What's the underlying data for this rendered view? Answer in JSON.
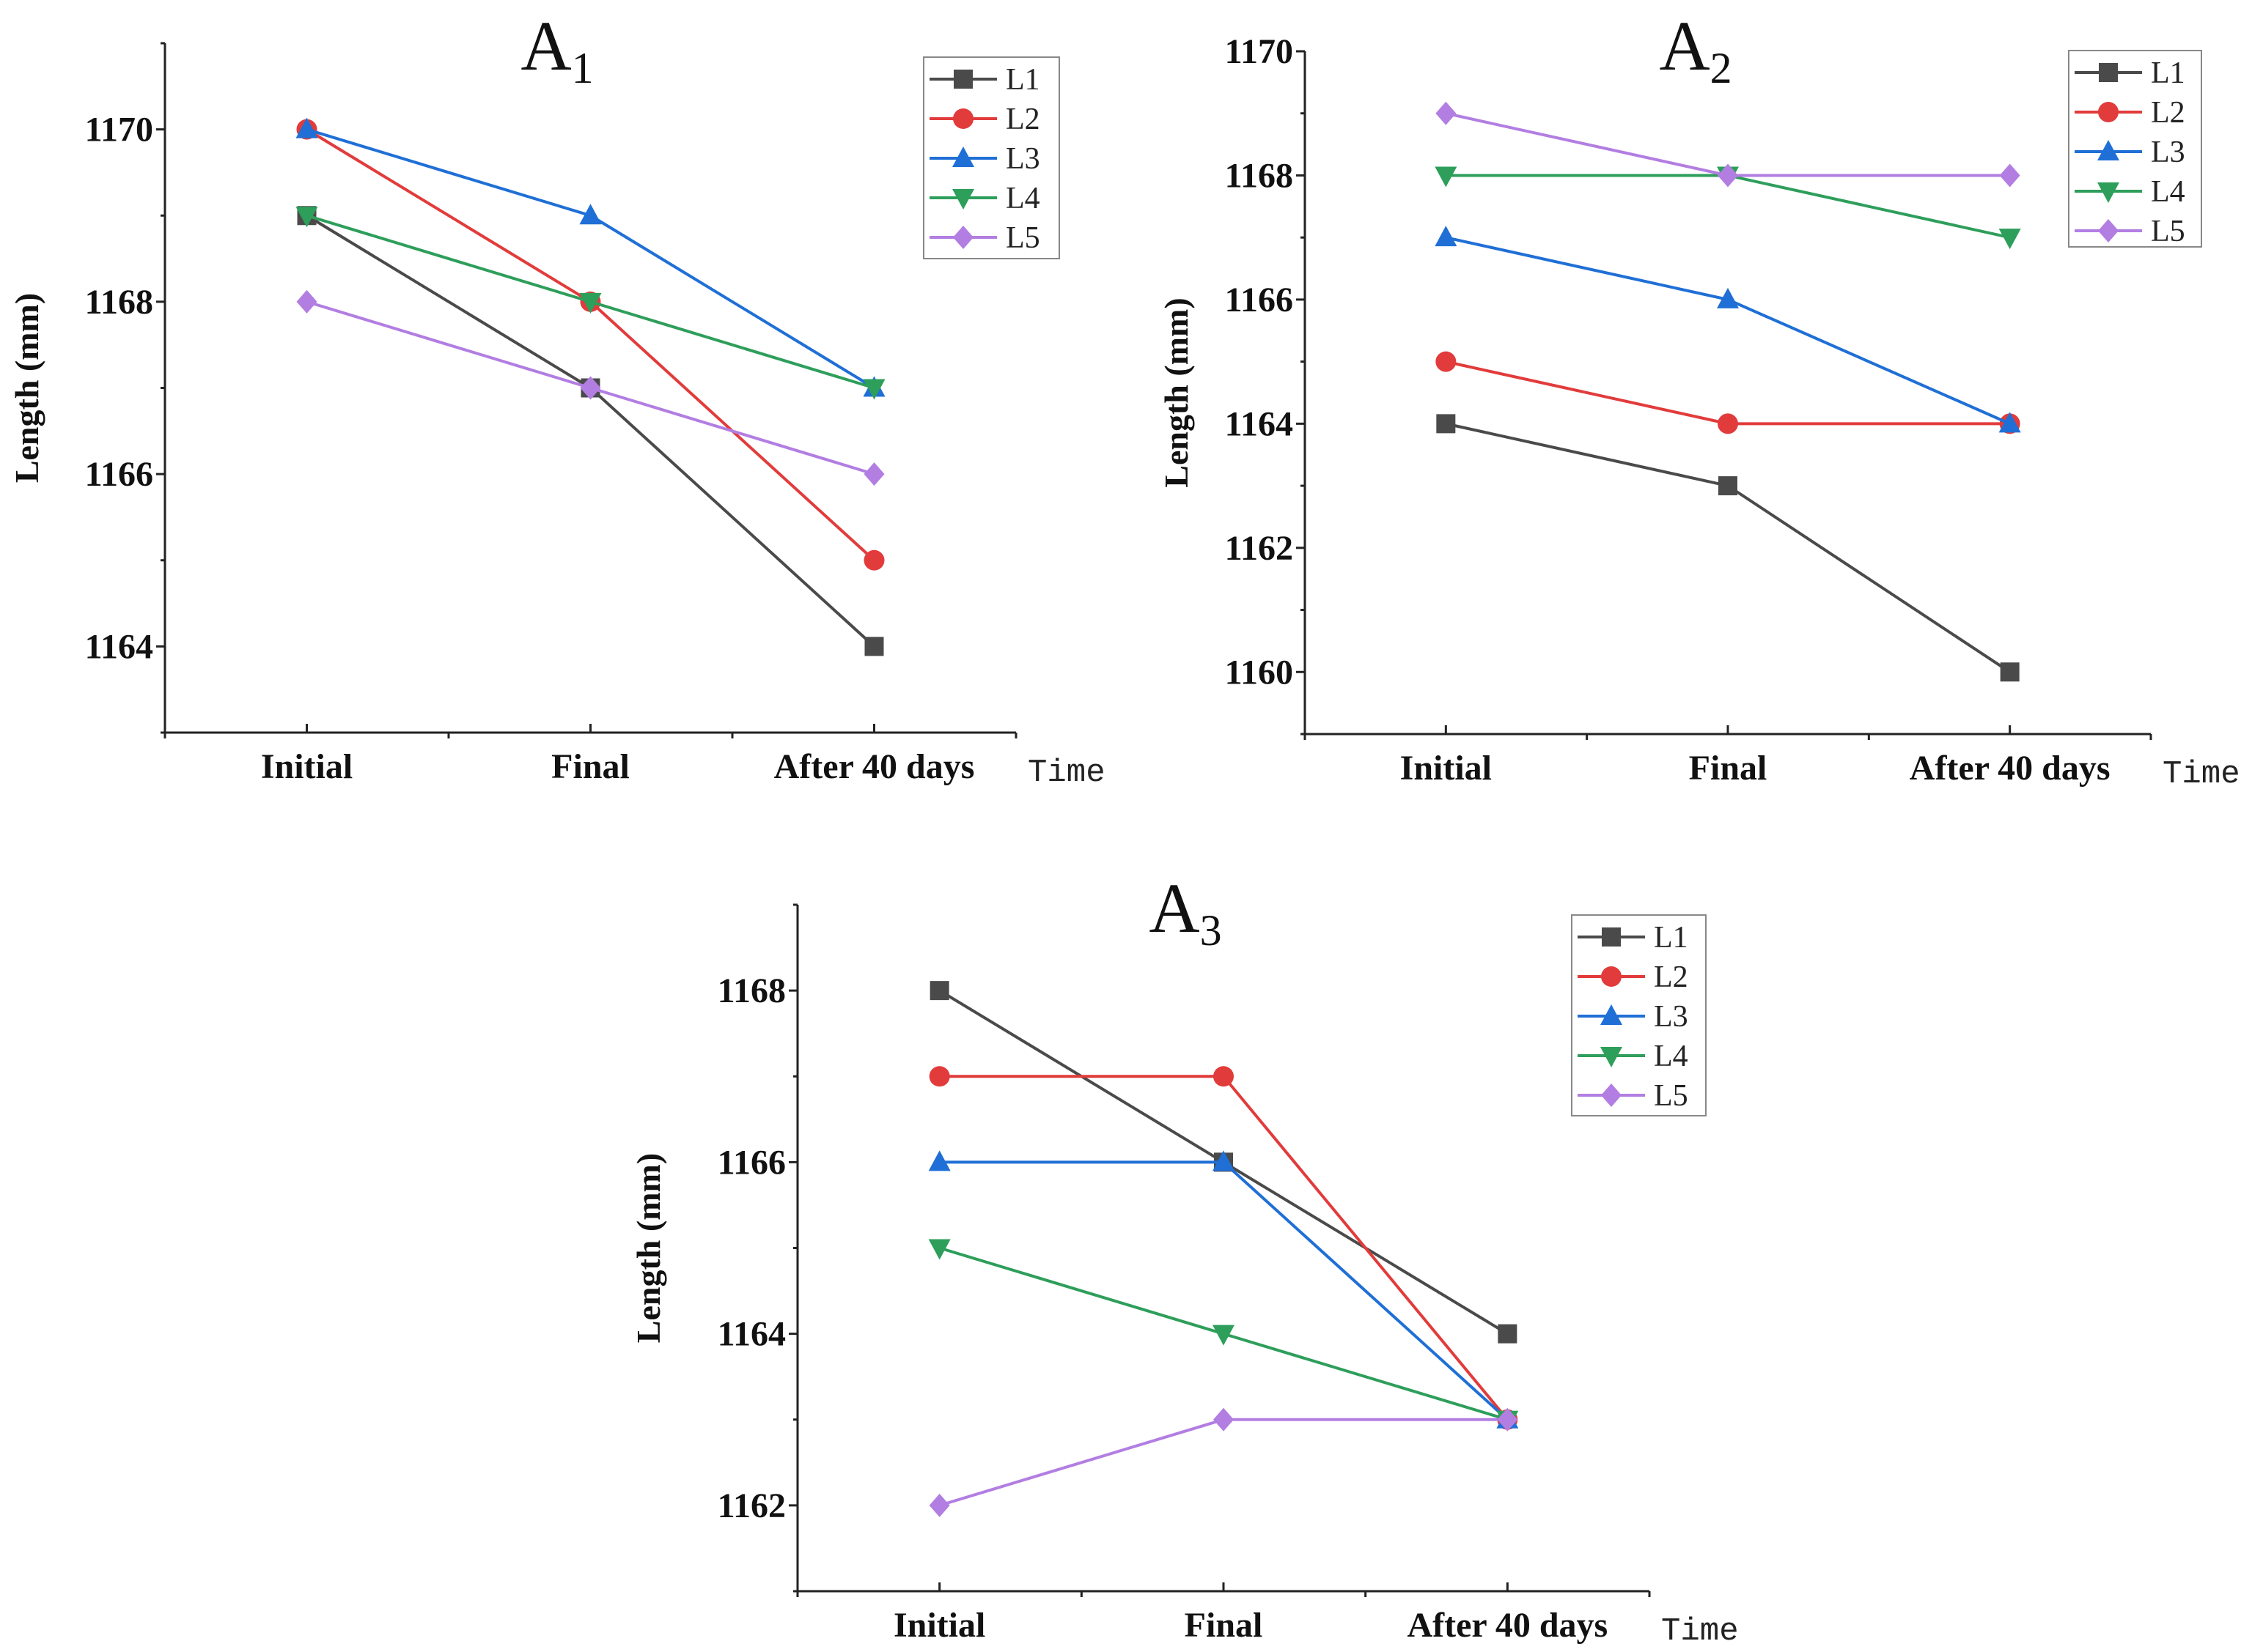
{
  "series_colors": {
    "L1": "#4a4a4a",
    "L2": "#e23b3b",
    "L3": "#1f6fd6",
    "L4": "#2e9e5b",
    "L5": "#b27ee2"
  },
  "series_markers": {
    "L1": "square",
    "L2": "circle",
    "L3": "triangle-up",
    "L4": "triangle-down",
    "L5": "diamond"
  },
  "chart_data": [
    {
      "type": "line",
      "title": "A1",
      "title_main": "A",
      "title_sub": "1",
      "xlabel": "Time",
      "ylabel": "Length (mm)",
      "categories": [
        "Initial",
        "Final",
        "After 40 days"
      ],
      "ylim": [
        1163,
        1171
      ],
      "yticks": [
        1164,
        1166,
        1168,
        1170
      ],
      "legend": "top-right",
      "series": [
        {
          "name": "L1",
          "values": [
            1169,
            1167,
            1164
          ]
        },
        {
          "name": "L2",
          "values": [
            1170,
            1168,
            1165
          ]
        },
        {
          "name": "L3",
          "values": [
            1170,
            1169,
            1167
          ]
        },
        {
          "name": "L4",
          "values": [
            1169,
            1168,
            1167
          ]
        },
        {
          "name": "L5",
          "values": [
            1168,
            1167,
            1166
          ]
        }
      ]
    },
    {
      "type": "line",
      "title": "A2",
      "title_main": "A",
      "title_sub": "2",
      "xlabel": "Time",
      "ylabel": "Length (mm)",
      "categories": [
        "Initial",
        "Final",
        "After 40 days"
      ],
      "ylim": [
        1159,
        1170
      ],
      "yticks": [
        1160,
        1162,
        1164,
        1166,
        1168,
        1170
      ],
      "legend": "top-right",
      "series": [
        {
          "name": "L1",
          "values": [
            1164,
            1163,
            1160
          ]
        },
        {
          "name": "L2",
          "values": [
            1165,
            1164,
            1164
          ]
        },
        {
          "name": "L3",
          "values": [
            1167,
            1166,
            1164
          ]
        },
        {
          "name": "L4",
          "values": [
            1168,
            1168,
            1167
          ]
        },
        {
          "name": "L5",
          "values": [
            1169,
            1168,
            1168
          ]
        }
      ]
    },
    {
      "type": "line",
      "title": "A3",
      "title_main": "A",
      "title_sub": "3",
      "xlabel": "Time",
      "ylabel": "Length (mm)",
      "categories": [
        "Initial",
        "Final",
        "After 40 days"
      ],
      "ylim": [
        1161,
        1169
      ],
      "yticks": [
        1162,
        1164,
        1166,
        1168
      ],
      "legend": "top-right",
      "series": [
        {
          "name": "L1",
          "values": [
            1168,
            1166,
            1164
          ]
        },
        {
          "name": "L2",
          "values": [
            1167,
            1167,
            1163
          ]
        },
        {
          "name": "L3",
          "values": [
            1166,
            1166,
            1163
          ]
        },
        {
          "name": "L4",
          "values": [
            1165,
            1164,
            1163
          ]
        },
        {
          "name": "L5",
          "values": [
            1162,
            1163,
            1163
          ]
        }
      ]
    }
  ]
}
